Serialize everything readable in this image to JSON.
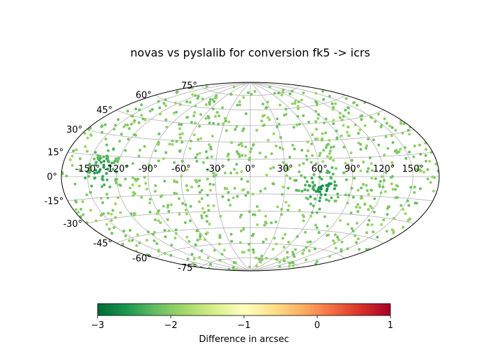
{
  "chart_data": {
    "type": "scatter",
    "projection": "hammer",
    "title": "novas vs pyslalib for conversion fk5 -> icrs",
    "longitude_ticks": [
      "-150°",
      "-120°",
      "-90°",
      "-60°",
      "-30°",
      "0°",
      "30°",
      "60°",
      "90°",
      "120°",
      "150°"
    ],
    "latitude_ticks": [
      "75°",
      "60°",
      "45°",
      "30°",
      "15°",
      "0°",
      "-15°",
      "-30°",
      "-45°",
      "-60°",
      "-75°"
    ],
    "grid": true,
    "colorbar": {
      "label": "Difference in arcsec",
      "ticks": [
        "−3",
        "−2",
        "−1",
        "0",
        "1"
      ],
      "vmin": -3,
      "vmax": 1,
      "colormap": [
        "#006837",
        "#1a9850",
        "#66bd63",
        "#a6d96a",
        "#d9ef8b",
        "#ffffbf",
        "#fee08b",
        "#fdae61",
        "#f46d43",
        "#d73027",
        "#a50026"
      ]
    },
    "points": {
      "count_approx": 900,
      "typical_difference": -2.0,
      "cluster_regions": [
        {
          "lon": -135,
          "lat": 5,
          "difference": -2.7
        },
        {
          "lon": 65,
          "lat": -10,
          "difference": -2.8
        }
      ]
    }
  }
}
